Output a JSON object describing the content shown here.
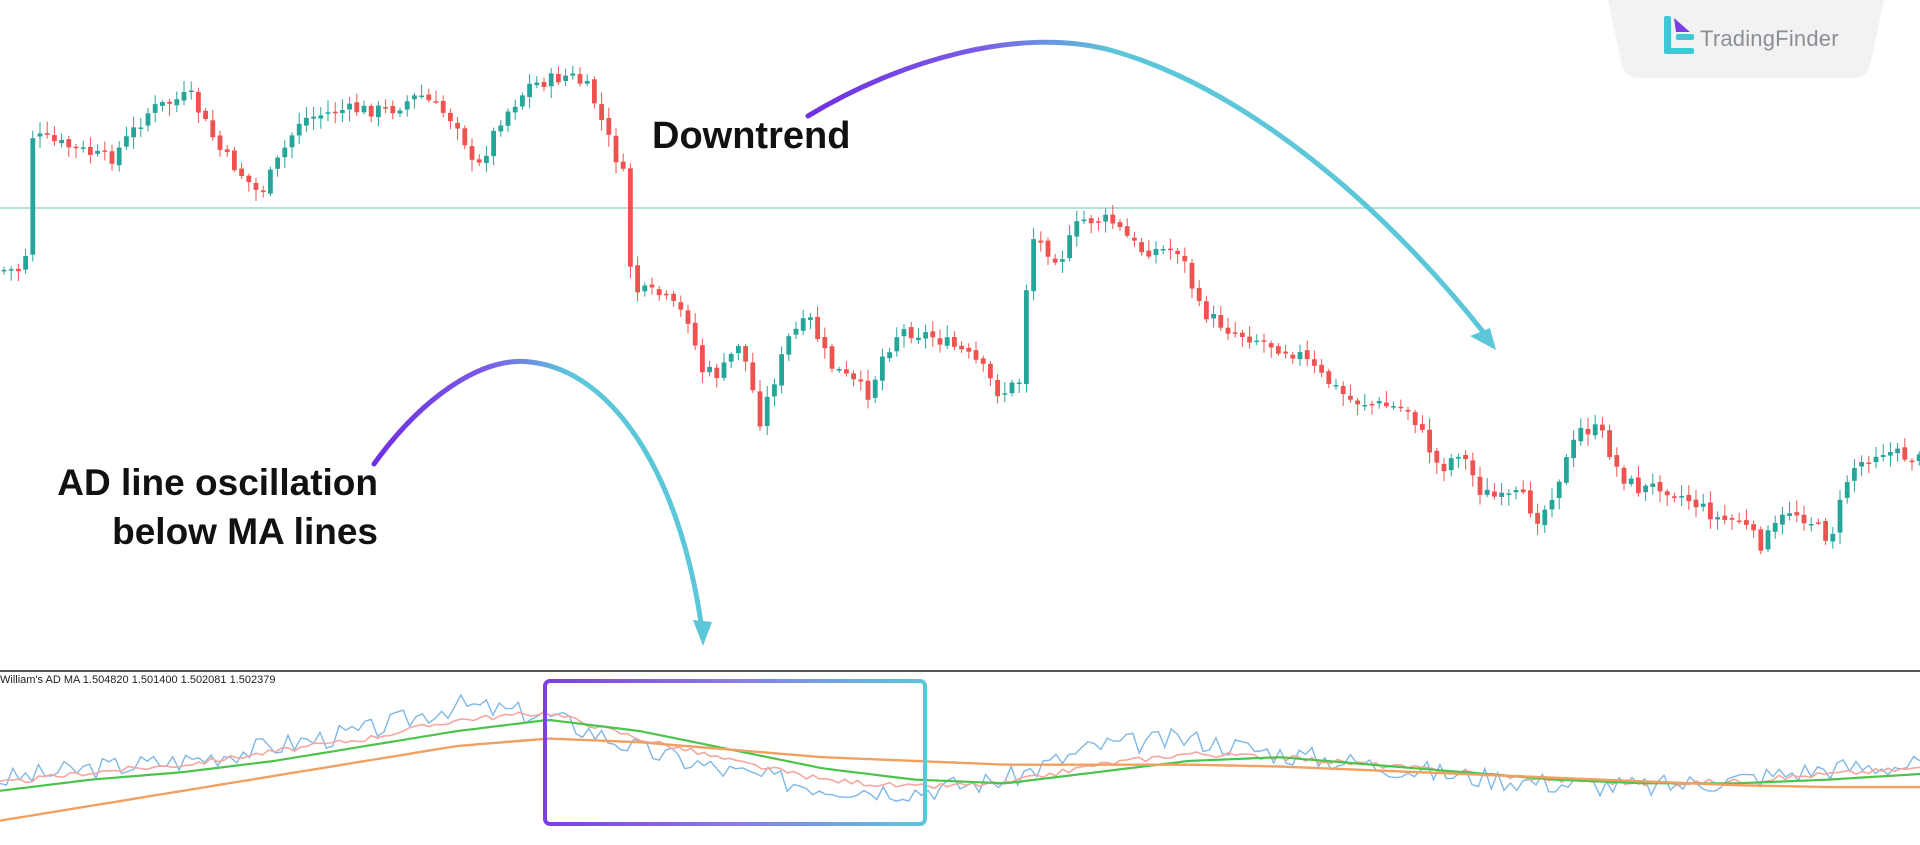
{
  "brand": {
    "name": "TradingFinder",
    "logo_icon": "tradingfinder-logo-icon"
  },
  "annotations": {
    "downtrend": "Downtrend",
    "ad_line_1": "AD line oscillation",
    "ad_line_2": "below MA lines"
  },
  "indicator_panel": {
    "label": "William's AD MA 1.504820 1.501400 1.502081 1.502379"
  },
  "colors": {
    "bull": "#26a69a",
    "bear": "#ef5350",
    "ad_line": "#7fb8e6",
    "ma_fast": "#f4a7a0",
    "ma_mid": "#4cc34c",
    "ma_slow": "#f0a060",
    "horizontal_level": "#9ad8c8",
    "arrow_start": "#7b3fe4",
    "arrow_end": "#5cc7d9",
    "box_start": "#7b3fe4",
    "box_end": "#5cc7d9"
  },
  "chart_data": [
    {
      "type": "candlestick",
      "trend": "downtrend after price breaks below horizontal level",
      "horizontal_level": true,
      "candles_count": 190
    },
    {
      "type": "line",
      "series": [
        {
          "name": "William's AD",
          "values": [
            0.12,
            0.18,
            0.22,
            0.3,
            0.38,
            0.52,
            0.46,
            0.28,
            0.16,
            0.08,
            0.06,
            0.12,
            0.3,
            0.34,
            0.26,
            0.2,
            0.14,
            0.1,
            0.08,
            0.12,
            0.18,
            0.2
          ]
        },
        {
          "name": "MA 1",
          "values": [
            0.1,
            0.16,
            0.2,
            0.27,
            0.34,
            0.44,
            0.48,
            0.34,
            0.22,
            0.12,
            0.08,
            0.1,
            0.2,
            0.26,
            0.24,
            0.2,
            0.16,
            0.12,
            0.1,
            0.11,
            0.15,
            0.18
          ]
        },
        {
          "name": "MA 2",
          "values": [
            0.06,
            0.12,
            0.16,
            0.22,
            0.3,
            0.38,
            0.44,
            0.38,
            0.28,
            0.18,
            0.12,
            0.1,
            0.16,
            0.22,
            0.24,
            0.2,
            0.16,
            0.12,
            0.1,
            0.1,
            0.12,
            0.15
          ]
        },
        {
          "name": "MA 3",
          "values": [
            -0.1,
            -0.02,
            0.06,
            0.14,
            0.22,
            0.3,
            0.34,
            0.32,
            0.28,
            0.24,
            0.22,
            0.2,
            0.2,
            0.2,
            0.19,
            0.17,
            0.15,
            0.13,
            0.11,
            0.09,
            0.08,
            0.08
          ]
        }
      ],
      "label": "William's AD MA 1.504820 1.501400 1.502081 1.502379"
    }
  ]
}
